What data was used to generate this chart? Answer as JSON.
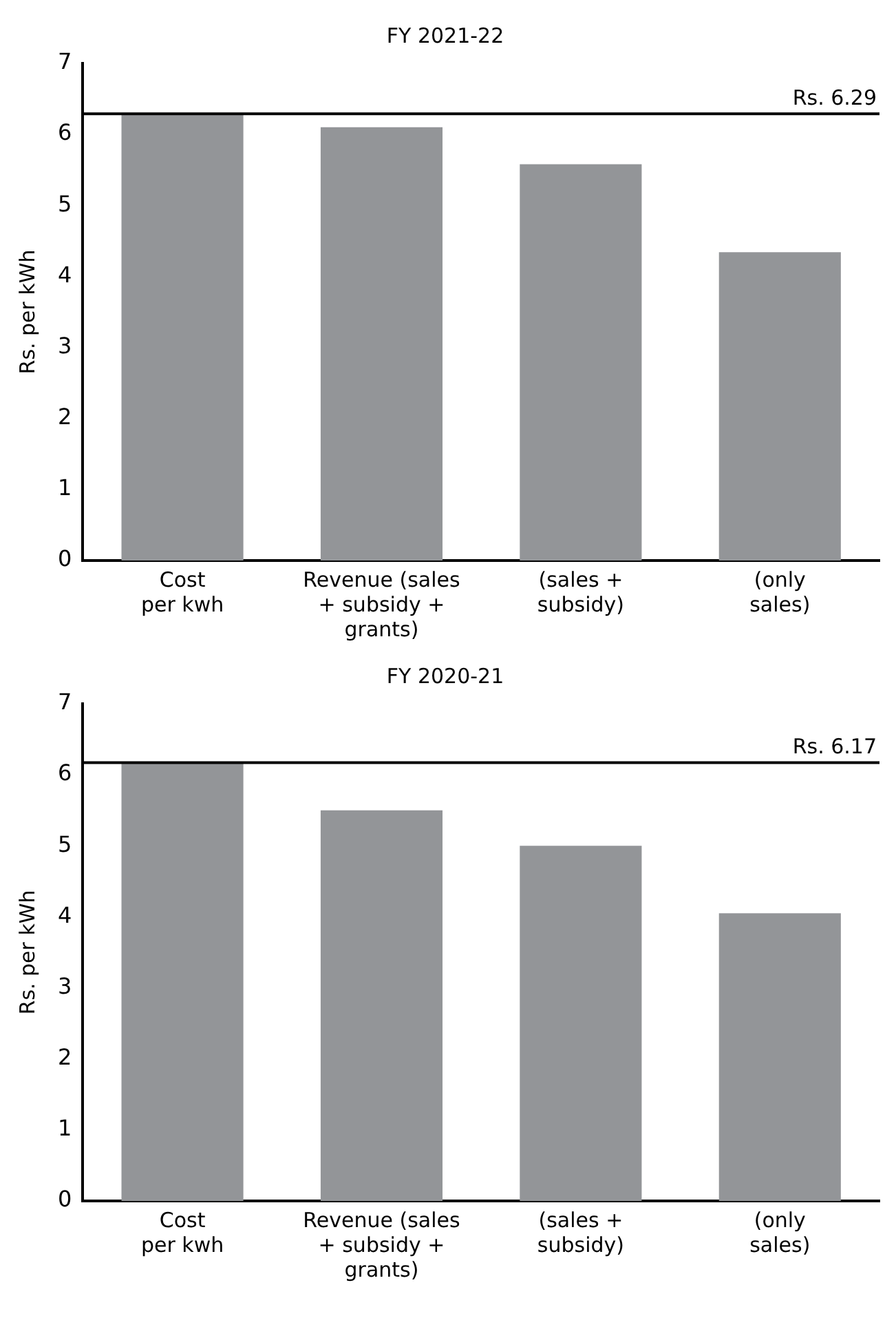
{
  "chart_data": [
    {
      "type": "bar",
      "title": "FY 2021-22",
      "ylabel": "Rs. per kWh",
      "categories": [
        "Cost\nper kwh",
        "Revenue (sales\n+ subsidy +\ngrants)",
        "(sales +\nsubsidy)",
        "(only\nsales)"
      ],
      "values": [
        6.29,
        6.1,
        5.58,
        4.34
      ],
      "color": "#939598",
      "ylim": [
        0,
        7
      ],
      "yticks": [
        0,
        1,
        2,
        3,
        4,
        5,
        6,
        7
      ],
      "grid": false,
      "legend": false,
      "ref_lines": [
        {
          "axis": "y",
          "value": 6.29,
          "label": "Rs. 6.29",
          "color": "#000000"
        }
      ]
    },
    {
      "type": "bar",
      "title": "FY 2020-21",
      "ylabel": "Rs. per kWh",
      "categories": [
        "Cost\nper kwh",
        "Revenue (sales\n+ subsidy +\ngrants)",
        "(sales +\nsubsidy)",
        "(only\nsales)"
      ],
      "values": [
        6.17,
        5.5,
        5.0,
        4.05
      ],
      "color": "#939598",
      "ylim": [
        0,
        7
      ],
      "yticks": [
        0,
        1,
        2,
        3,
        4,
        5,
        6,
        7
      ],
      "grid": false,
      "legend": false,
      "ref_lines": [
        {
          "axis": "y",
          "value": 6.17,
          "label": "Rs. 6.17",
          "color": "#000000"
        }
      ]
    }
  ]
}
